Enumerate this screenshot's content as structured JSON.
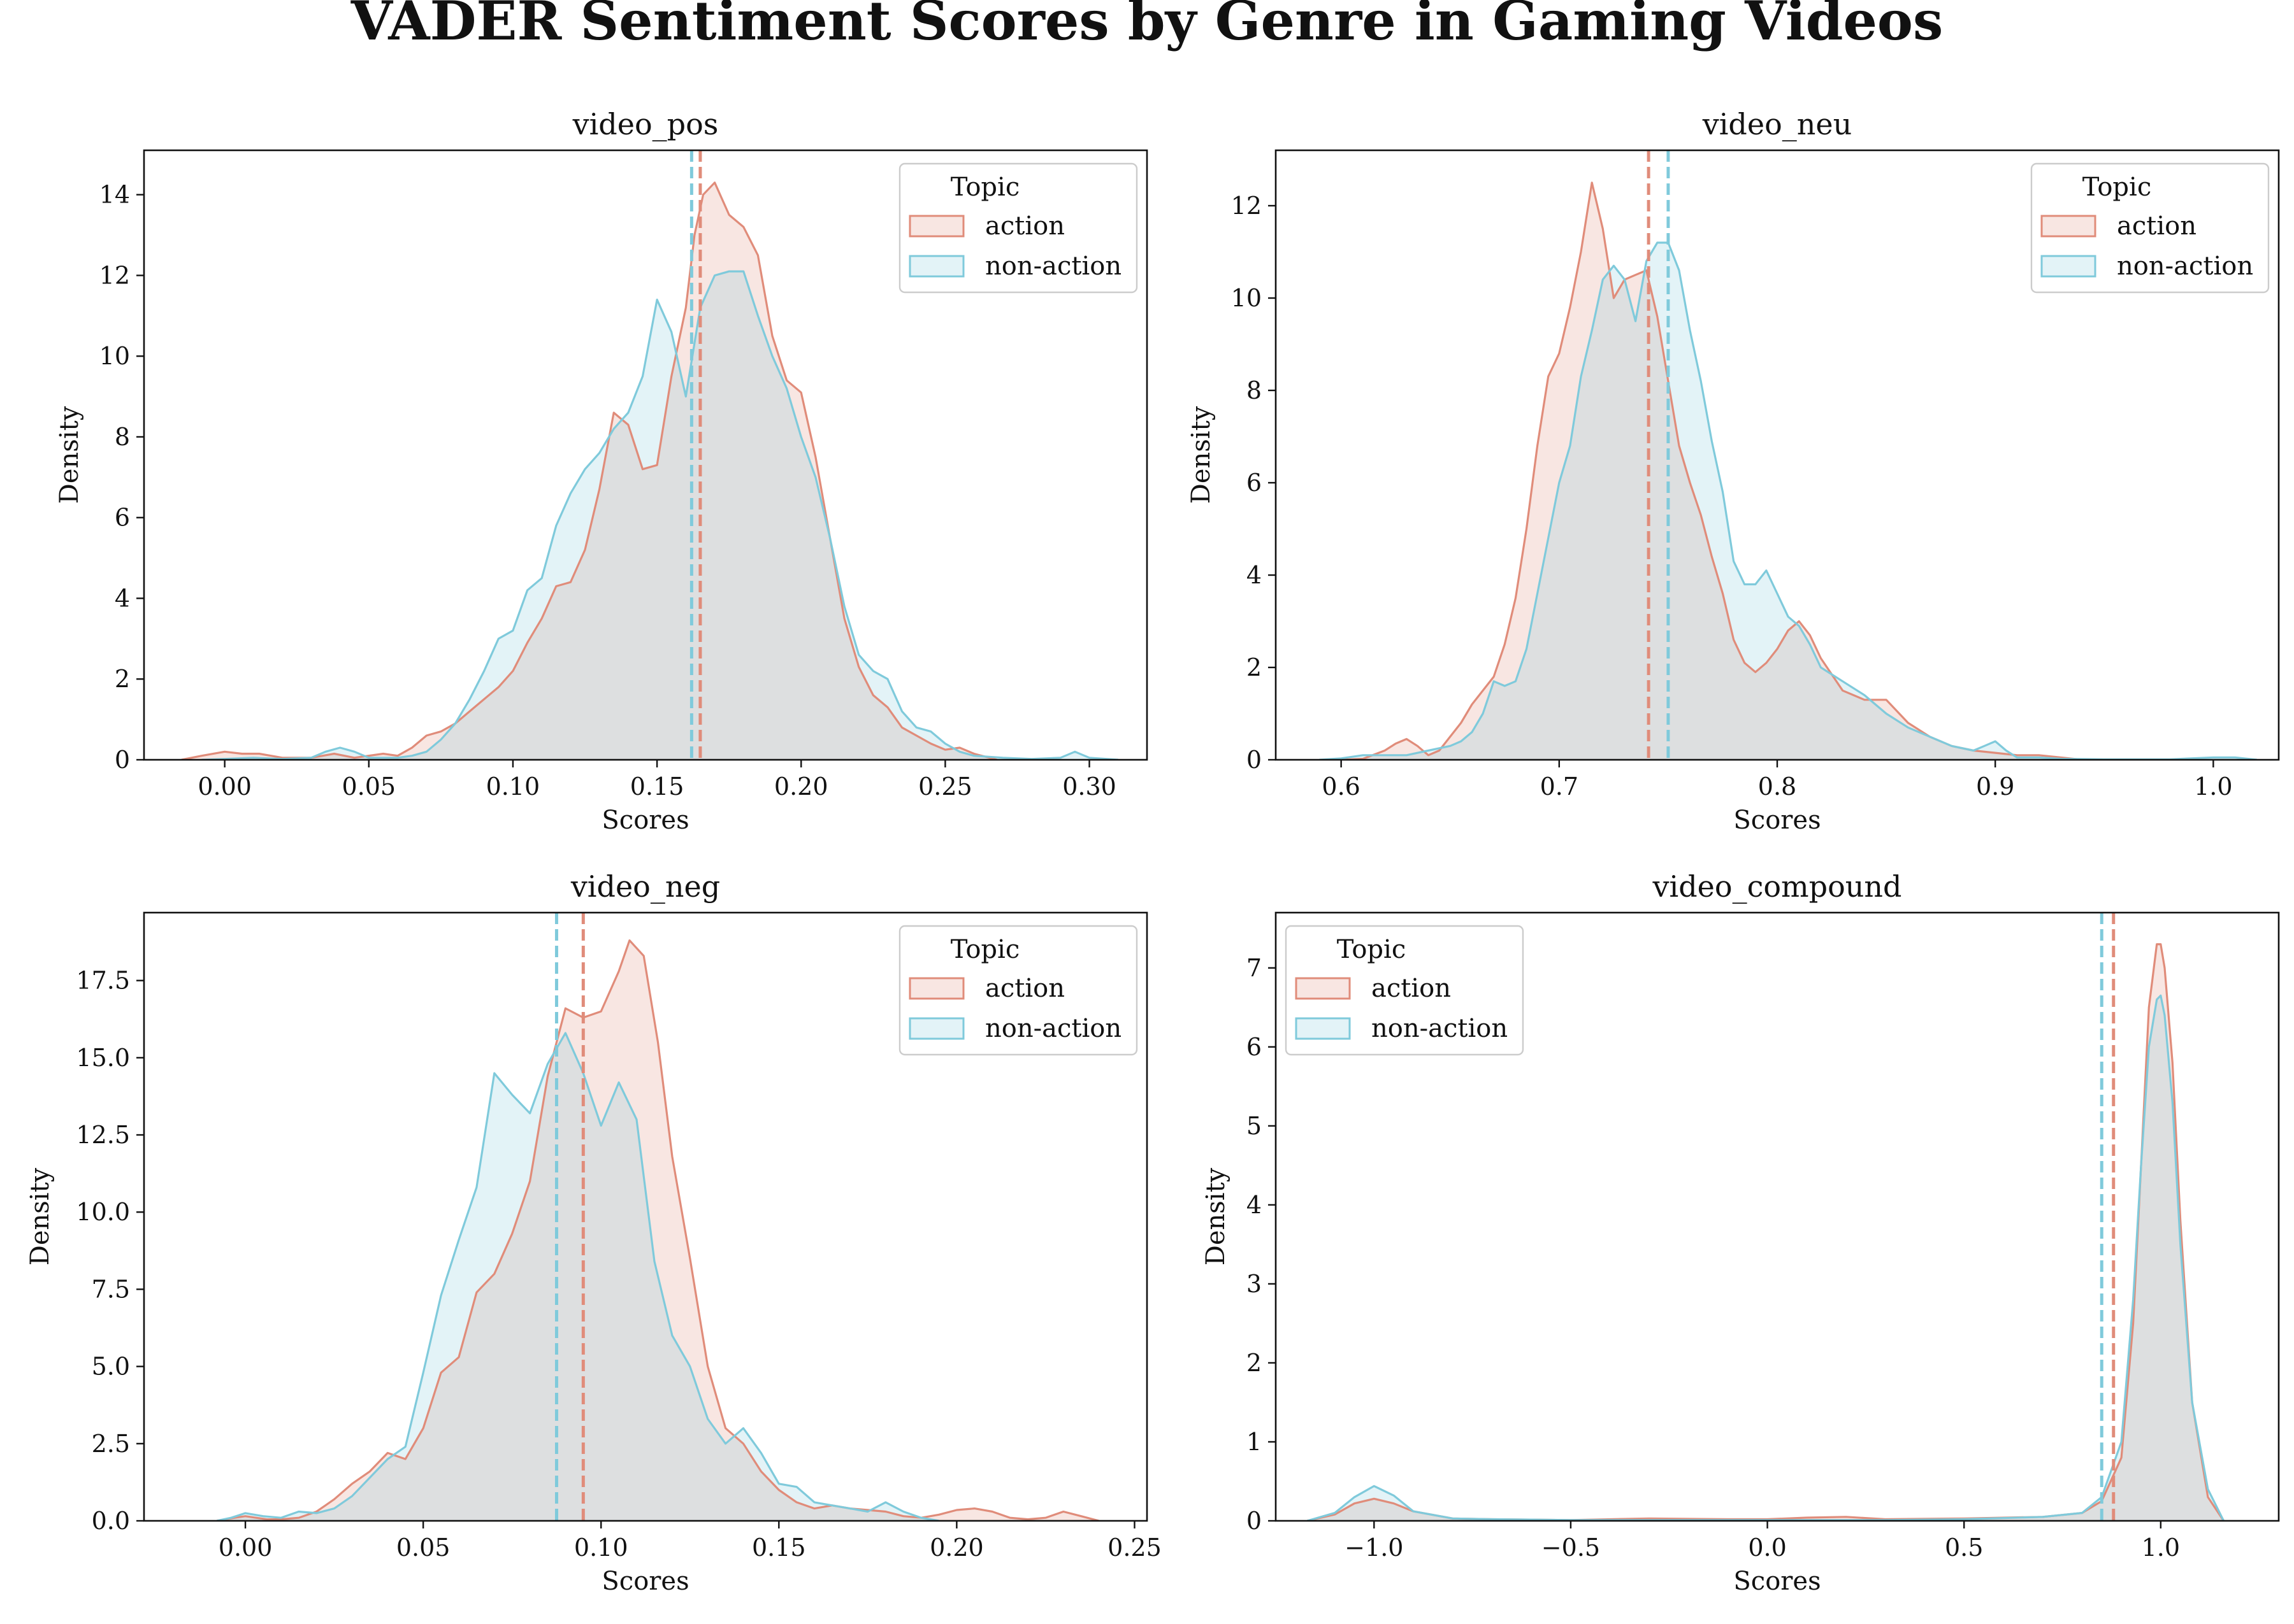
{
  "title": "VADER Sentiment Scores by Genre in Gaming Videos",
  "legend_title": "Topic",
  "colors": {
    "action": "#E08C7A",
    "non-action": "#7FCADB",
    "axis": "#111111"
  },
  "chart_data": [
    {
      "type": "area",
      "title": "video_pos",
      "xlabel": "Scores",
      "ylabel": "Density",
      "xlim": [
        -0.028,
        0.32
      ],
      "ylim": [
        0,
        15.1
      ],
      "xticks": [
        0.0,
        0.05,
        0.1,
        0.15,
        0.2,
        0.25,
        0.3
      ],
      "xtick_labels": [
        "0.00",
        "0.05",
        "0.10",
        "0.15",
        "0.20",
        "0.25",
        "0.30"
      ],
      "yticks": [
        0,
        2,
        4,
        6,
        8,
        10,
        12,
        14
      ],
      "ytick_labels": [
        "0",
        "2",
        "4",
        "6",
        "8",
        "10",
        "12",
        "14"
      ],
      "legend_loc": "upper right",
      "series": [
        {
          "name": "action",
          "mean": 0.165,
          "x": [
            -0.015,
            -0.008,
            0.0,
            0.006,
            0.012,
            0.02,
            0.03,
            0.038,
            0.045,
            0.055,
            0.06,
            0.065,
            0.07,
            0.075,
            0.08,
            0.085,
            0.09,
            0.095,
            0.1,
            0.105,
            0.11,
            0.115,
            0.12,
            0.125,
            0.13,
            0.135,
            0.14,
            0.145,
            0.15,
            0.155,
            0.16,
            0.163,
            0.166,
            0.17,
            0.175,
            0.18,
            0.185,
            0.19,
            0.195,
            0.2,
            0.205,
            0.21,
            0.215,
            0.22,
            0.225,
            0.23,
            0.235,
            0.24,
            0.245,
            0.25,
            0.255,
            0.26,
            0.268
          ],
          "y": [
            0,
            0.1,
            0.2,
            0.15,
            0.15,
            0.05,
            0.05,
            0.15,
            0.05,
            0.15,
            0.1,
            0.3,
            0.6,
            0.7,
            0.9,
            1.2,
            1.5,
            1.8,
            2.2,
            2.9,
            3.5,
            4.3,
            4.4,
            5.2,
            6.7,
            8.6,
            8.3,
            7.2,
            7.3,
            9.5,
            11.2,
            13.0,
            14.0,
            14.3,
            13.5,
            13.2,
            12.5,
            10.5,
            9.4,
            9.1,
            7.5,
            5.5,
            3.5,
            2.3,
            1.6,
            1.3,
            0.8,
            0.6,
            0.4,
            0.25,
            0.3,
            0.15,
            0
          ]
        },
        {
          "name": "non-action",
          "mean": 0.162,
          "x": [
            -0.008,
            0.0,
            0.01,
            0.02,
            0.03,
            0.035,
            0.04,
            0.045,
            0.05,
            0.055,
            0.06,
            0.065,
            0.07,
            0.075,
            0.08,
            0.085,
            0.09,
            0.095,
            0.1,
            0.105,
            0.11,
            0.115,
            0.12,
            0.125,
            0.13,
            0.135,
            0.14,
            0.145,
            0.15,
            0.155,
            0.16,
            0.165,
            0.17,
            0.175,
            0.18,
            0.185,
            0.19,
            0.195,
            0.2,
            0.205,
            0.21,
            0.215,
            0.22,
            0.225,
            0.23,
            0.235,
            0.24,
            0.245,
            0.25,
            0.255,
            0.26,
            0.27,
            0.28,
            0.29,
            0.295,
            0.3,
            0.31
          ],
          "y": [
            0,
            0.02,
            0.05,
            0.02,
            0.05,
            0.2,
            0.3,
            0.2,
            0.05,
            0.05,
            0.05,
            0.1,
            0.2,
            0.5,
            0.9,
            1.5,
            2.2,
            3.0,
            3.2,
            4.2,
            4.5,
            5.8,
            6.6,
            7.2,
            7.6,
            8.2,
            8.6,
            9.5,
            11.4,
            10.6,
            9.0,
            11.2,
            12.0,
            12.1,
            12.1,
            11.0,
            10.0,
            9.2,
            8.0,
            7.0,
            5.5,
            3.8,
            2.6,
            2.2,
            2.0,
            1.2,
            0.8,
            0.7,
            0.4,
            0.2,
            0.1,
            0.05,
            0.02,
            0.05,
            0.2,
            0.05,
            0
          ]
        }
      ]
    },
    {
      "type": "area",
      "title": "video_neu",
      "xlabel": "Scores",
      "ylabel": "Density",
      "xlim": [
        0.57,
        1.03
      ],
      "ylim": [
        0,
        13.2
      ],
      "xticks": [
        0.6,
        0.7,
        0.8,
        0.9,
        1.0
      ],
      "xtick_labels": [
        "0.6",
        "0.7",
        "0.8",
        "0.9",
        "1.0"
      ],
      "yticks": [
        0,
        2,
        4,
        6,
        8,
        10,
        12
      ],
      "ytick_labels": [
        "0",
        "2",
        "4",
        "6",
        "8",
        "10",
        "12"
      ],
      "legend_loc": "upper right",
      "series": [
        {
          "name": "action",
          "mean": 0.741,
          "x": [
            0.6,
            0.61,
            0.62,
            0.625,
            0.63,
            0.635,
            0.64,
            0.645,
            0.65,
            0.655,
            0.66,
            0.665,
            0.67,
            0.675,
            0.68,
            0.685,
            0.69,
            0.695,
            0.7,
            0.705,
            0.71,
            0.715,
            0.72,
            0.725,
            0.73,
            0.735,
            0.74,
            0.745,
            0.75,
            0.755,
            0.76,
            0.765,
            0.77,
            0.775,
            0.78,
            0.785,
            0.79,
            0.795,
            0.8,
            0.805,
            0.81,
            0.815,
            0.82,
            0.83,
            0.84,
            0.85,
            0.86,
            0.87,
            0.88,
            0.89,
            0.9,
            0.91,
            0.92,
            0.93,
            0.94
          ],
          "y": [
            0,
            0.02,
            0.2,
            0.35,
            0.45,
            0.3,
            0.1,
            0.2,
            0.5,
            0.8,
            1.2,
            1.5,
            1.8,
            2.5,
            3.5,
            5.0,
            6.8,
            8.3,
            8.8,
            9.8,
            11.0,
            12.5,
            11.5,
            10.0,
            10.4,
            10.5,
            10.6,
            9.6,
            8.2,
            6.8,
            6.0,
            5.3,
            4.4,
            3.6,
            2.6,
            2.1,
            1.9,
            2.1,
            2.4,
            2.8,
            3.0,
            2.7,
            2.2,
            1.5,
            1.3,
            1.3,
            0.8,
            0.5,
            0.3,
            0.2,
            0.15,
            0.1,
            0.1,
            0.05,
            0
          ]
        },
        {
          "name": "non-action",
          "mean": 0.75,
          "x": [
            0.59,
            0.6,
            0.61,
            0.62,
            0.63,
            0.64,
            0.65,
            0.655,
            0.66,
            0.665,
            0.67,
            0.675,
            0.68,
            0.685,
            0.69,
            0.695,
            0.7,
            0.705,
            0.71,
            0.715,
            0.72,
            0.725,
            0.73,
            0.735,
            0.74,
            0.745,
            0.75,
            0.755,
            0.76,
            0.765,
            0.77,
            0.775,
            0.78,
            0.785,
            0.79,
            0.795,
            0.8,
            0.805,
            0.81,
            0.815,
            0.82,
            0.83,
            0.84,
            0.85,
            0.86,
            0.87,
            0.88,
            0.89,
            0.895,
            0.9,
            0.905,
            0.91,
            0.92,
            0.93,
            0.95,
            0.98,
            1.0,
            1.01,
            1.02
          ],
          "y": [
            0,
            0.03,
            0.1,
            0.1,
            0.1,
            0.2,
            0.3,
            0.4,
            0.6,
            1.0,
            1.7,
            1.6,
            1.7,
            2.4,
            3.6,
            4.8,
            6.0,
            6.8,
            8.3,
            9.3,
            10.4,
            10.7,
            10.4,
            9.5,
            10.8,
            11.2,
            11.2,
            10.6,
            9.3,
            8.2,
            6.9,
            5.8,
            4.3,
            3.8,
            3.8,
            4.1,
            3.6,
            3.1,
            2.9,
            2.5,
            2.0,
            1.7,
            1.4,
            1.0,
            0.7,
            0.5,
            0.3,
            0.2,
            0.3,
            0.4,
            0.2,
            0.05,
            0.05,
            0.02,
            0.01,
            0.01,
            0.05,
            0.05,
            0
          ]
        }
      ]
    },
    {
      "type": "area",
      "title": "video_neg",
      "xlabel": "Scores",
      "ylabel": "Density",
      "xlim": [
        -0.0285,
        0.2535
      ],
      "ylim": [
        0,
        19.7
      ],
      "xticks": [
        0.0,
        0.05,
        0.1,
        0.15,
        0.2,
        0.25
      ],
      "xtick_labels": [
        "0.00",
        "0.05",
        "0.10",
        "0.15",
        "0.20",
        "0.25"
      ],
      "yticks": [
        0,
        2.5,
        5.0,
        7.5,
        10.0,
        12.5,
        15.0,
        17.5
      ],
      "ytick_labels": [
        "0.0",
        "2.5",
        "5.0",
        "7.5",
        "10.0",
        "12.5",
        "15.0",
        "17.5"
      ],
      "legend_loc": "upper right",
      "series": [
        {
          "name": "action",
          "mean": 0.095,
          "x": [
            -0.008,
            -0.003,
            0.0,
            0.003,
            0.006,
            0.01,
            0.015,
            0.02,
            0.025,
            0.03,
            0.035,
            0.04,
            0.045,
            0.05,
            0.055,
            0.06,
            0.065,
            0.07,
            0.075,
            0.08,
            0.085,
            0.09,
            0.095,
            0.1,
            0.105,
            0.108,
            0.112,
            0.116,
            0.12,
            0.125,
            0.13,
            0.135,
            0.14,
            0.145,
            0.15,
            0.155,
            0.16,
            0.165,
            0.17,
            0.175,
            0.18,
            0.185,
            0.19,
            0.195,
            0.2,
            0.205,
            0.21,
            0.215,
            0.22,
            0.225,
            0.23,
            0.235,
            0.24
          ],
          "y": [
            0,
            0.1,
            0.15,
            0.1,
            0.05,
            0.05,
            0.1,
            0.3,
            0.7,
            1.2,
            1.6,
            2.2,
            2.0,
            3.0,
            4.8,
            5.3,
            7.4,
            8.0,
            9.3,
            11.0,
            14.4,
            16.6,
            16.3,
            16.5,
            17.8,
            18.8,
            18.3,
            15.5,
            11.8,
            8.5,
            5.0,
            3.0,
            2.5,
            1.6,
            1.0,
            0.6,
            0.4,
            0.5,
            0.4,
            0.35,
            0.3,
            0.15,
            0.1,
            0.2,
            0.35,
            0.4,
            0.3,
            0.1,
            0.05,
            0.1,
            0.3,
            0.15,
            0
          ]
        },
        {
          "name": "non-action",
          "mean": 0.0875,
          "x": [
            -0.008,
            -0.004,
            0.0,
            0.005,
            0.01,
            0.015,
            0.02,
            0.025,
            0.03,
            0.035,
            0.04,
            0.045,
            0.05,
            0.055,
            0.06,
            0.065,
            0.07,
            0.075,
            0.08,
            0.085,
            0.09,
            0.095,
            0.1,
            0.105,
            0.11,
            0.115,
            0.12,
            0.125,
            0.13,
            0.135,
            0.14,
            0.145,
            0.15,
            0.155,
            0.16,
            0.165,
            0.17,
            0.175,
            0.18,
            0.185,
            0.19,
            0.195
          ],
          "y": [
            0,
            0.1,
            0.25,
            0.15,
            0.1,
            0.3,
            0.25,
            0.4,
            0.8,
            1.4,
            2.0,
            2.4,
            4.8,
            7.3,
            9.1,
            10.8,
            14.5,
            13.8,
            13.2,
            14.8,
            15.8,
            14.5,
            12.8,
            14.2,
            13.0,
            8.4,
            6.0,
            5.0,
            3.3,
            2.5,
            3.0,
            2.2,
            1.2,
            1.1,
            0.6,
            0.5,
            0.4,
            0.3,
            0.6,
            0.3,
            0.1,
            0
          ]
        }
      ]
    },
    {
      "type": "area",
      "title": "video_compound",
      "xlabel": "Scores",
      "ylabel": "Density",
      "xlim": [
        -1.25,
        1.3
      ],
      "ylim": [
        0,
        7.7
      ],
      "xticks": [
        -1.0,
        -0.5,
        0.0,
        0.5,
        1.0
      ],
      "xtick_labels": [
        "−1.0",
        "−0.5",
        "0.0",
        "0.5",
        "1.0"
      ],
      "yticks": [
        0,
        1,
        2,
        3,
        4,
        5,
        6,
        7
      ],
      "ytick_labels": [
        "0",
        "1",
        "2",
        "3",
        "4",
        "5",
        "6",
        "7"
      ],
      "legend_loc": "upper left",
      "series": [
        {
          "name": "action",
          "mean": 0.88,
          "x": [
            -1.17,
            -1.1,
            -1.05,
            -1.0,
            -0.95,
            -0.9,
            -0.8,
            -0.7,
            -0.5,
            -0.3,
            -0.1,
            0.0,
            0.1,
            0.2,
            0.3,
            0.5,
            0.7,
            0.8,
            0.85,
            0.9,
            0.93,
            0.95,
            0.97,
            0.99,
            1.0,
            1.01,
            1.03,
            1.05,
            1.08,
            1.12,
            1.16
          ],
          "y": [
            0,
            0.08,
            0.22,
            0.28,
            0.22,
            0.12,
            0.03,
            0.02,
            0.01,
            0.03,
            0.02,
            0.02,
            0.04,
            0.05,
            0.02,
            0.03,
            0.05,
            0.1,
            0.25,
            0.8,
            2.5,
            4.5,
            6.5,
            7.3,
            7.3,
            7.0,
            5.8,
            3.8,
            1.5,
            0.3,
            0
          ]
        },
        {
          "name": "non-action",
          "mean": 0.85,
          "x": [
            -1.17,
            -1.1,
            -1.05,
            -1.0,
            -0.95,
            -0.9,
            -0.8,
            -0.7,
            -0.5,
            -0.3,
            0.0,
            0.3,
            0.5,
            0.7,
            0.8,
            0.85,
            0.9,
            0.93,
            0.95,
            0.97,
            0.99,
            1.0,
            1.01,
            1.03,
            1.05,
            1.08,
            1.12,
            1.16
          ],
          "y": [
            0,
            0.1,
            0.3,
            0.44,
            0.32,
            0.12,
            0.03,
            0.02,
            0.01,
            0.01,
            0.01,
            0.01,
            0.02,
            0.05,
            0.1,
            0.3,
            1.0,
            2.8,
            4.5,
            6.0,
            6.6,
            6.65,
            6.4,
            5.3,
            3.5,
            1.5,
            0.4,
            0
          ]
        }
      ]
    }
  ]
}
